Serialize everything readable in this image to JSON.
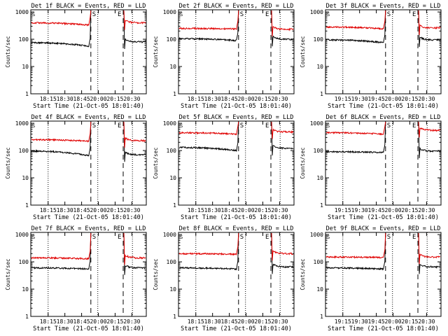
{
  "figure": {
    "x_axis_title": "Start Time (21-Oct-05 18:01:40)",
    "y_axis_title": "Counts/sec",
    "colors": {
      "events": "#000000",
      "lld": "#e00000",
      "axes": "#000000",
      "background": "#ffffff"
    }
  },
  "chart_data": [
    {
      "type": "line",
      "title": "Det 1f BLACK = Events, RED = LLD",
      "xlabel": "Start Time (21-Oct-05 18:01:40)",
      "ylabel": "Counts/sec",
      "x_ticks": [
        "18:15",
        "18:30",
        "18:45",
        "20:00",
        "20:15",
        "20:30"
      ],
      "y_ticks": [
        "1",
        "10",
        "100",
        "1000"
      ],
      "y_scale": "log",
      "ylim": [
        1,
        1200
      ],
      "markers": {
        "start": "S",
        "end": "E"
      },
      "series": [
        {
          "name": "Events",
          "color": "#000000",
          "level": 75,
          "end_level": 55,
          "post_level": 80
        },
        {
          "name": "LLD",
          "color": "#e00000",
          "level": 400,
          "end_level": 330,
          "post_level": 400
        }
      ]
    },
    {
      "type": "line",
      "title": "Det 2f BLACK = Events, RED = LLD",
      "xlabel": "Start Time (21-Oct-05 18:01:40)",
      "ylabel": "Counts/sec",
      "x_ticks": [
        "18:15",
        "18:30",
        "18:45",
        "20:00",
        "20:15",
        "20:30"
      ],
      "y_ticks": [
        "1",
        "10",
        "100",
        "1000"
      ],
      "y_scale": "log",
      "ylim": [
        1,
        1200
      ],
      "markers": {
        "start": "S",
        "end": "E"
      },
      "series": [
        {
          "name": "Events",
          "color": "#000000",
          "level": 105,
          "end_level": 90,
          "post_level": 100
        },
        {
          "name": "LLD",
          "color": "#e00000",
          "level": 250,
          "end_level": 240,
          "post_level": 230
        }
      ]
    },
    {
      "type": "line",
      "title": "Det 3f BLACK = Events, RED = LLD",
      "xlabel": "Start Time (21-Oct-05 18:01:40)",
      "ylabel": "Counts/sec",
      "x_ticks": [
        "19:15",
        "19:30",
        "19:45",
        "20:00",
        "20:15",
        "20:30"
      ],
      "y_ticks": [
        "1",
        "10",
        "100",
        "1000"
      ],
      "y_scale": "log",
      "ylim": [
        1,
        1200
      ],
      "markers": {
        "start": "S",
        "end": "E"
      },
      "series": [
        {
          "name": "Events",
          "color": "#000000",
          "level": 95,
          "end_level": 75,
          "post_level": 95
        },
        {
          "name": "LLD",
          "color": "#e00000",
          "level": 280,
          "end_level": 240,
          "post_level": 260
        }
      ]
    },
    {
      "type": "line",
      "title": "Det 4f BLACK = Events, RED = LLD",
      "xlabel": "Start Time (21-Oct-05 18:01:40)",
      "ylabel": "Counts/sec",
      "x_ticks": [
        "18:15",
        "18:30",
        "18:45",
        "20:00",
        "20:15",
        "20:30"
      ],
      "y_ticks": [
        "1",
        "10",
        "100",
        "1000"
      ],
      "y_scale": "log",
      "ylim": [
        1,
        1200
      ],
      "markers": {
        "start": "S",
        "end": "E"
      },
      "series": [
        {
          "name": "Events",
          "color": "#000000",
          "level": 95,
          "end_level": 65,
          "post_level": 70
        },
        {
          "name": "LLD",
          "color": "#e00000",
          "level": 250,
          "end_level": 220,
          "post_level": 230
        }
      ]
    },
    {
      "type": "line",
      "title": "Det 5f BLACK = Events, RED = LLD",
      "xlabel": "Start Time (21-Oct-05 18:01:40)",
      "ylabel": "Counts/sec",
      "x_ticks": [
        "18:15",
        "18:30",
        "18:45",
        "20:00",
        "20:15",
        "20:30"
      ],
      "y_ticks": [
        "1",
        "10",
        "100",
        "1000"
      ],
      "y_scale": "log",
      "ylim": [
        1,
        1200
      ],
      "markers": {
        "start": "S",
        "end": "E"
      },
      "series": [
        {
          "name": "Events",
          "color": "#000000",
          "level": 130,
          "end_level": 100,
          "post_level": 120
        },
        {
          "name": "LLD",
          "color": "#e00000",
          "level": 450,
          "end_level": 400,
          "post_level": 480
        }
      ]
    },
    {
      "type": "line",
      "title": "Det 6f BLACK = Events, RED = LLD",
      "xlabel": "Start Time (21-Oct-05 18:01:40)",
      "ylabel": "Counts/sec",
      "x_ticks": [
        "19:15",
        "19:30",
        "19:45",
        "20:00",
        "20:15",
        "20:30"
      ],
      "y_ticks": [
        "1",
        "10",
        "100",
        "1000"
      ],
      "y_scale": "log",
      "ylim": [
        1,
        1200
      ],
      "markers": {
        "start": "S",
        "end": "E"
      },
      "series": [
        {
          "name": "Events",
          "color": "#000000",
          "level": 90,
          "end_level": 85,
          "post_level": 95
        },
        {
          "name": "LLD",
          "color": "#e00000",
          "level": 450,
          "end_level": 400,
          "post_level": 550
        }
      ]
    },
    {
      "type": "line",
      "title": "Det 7f BLACK = Events, RED = LLD",
      "xlabel": "Start Time (21-Oct-05 18:01:40)",
      "ylabel": "Counts/sec",
      "x_ticks": [
        "18:15",
        "18:30",
        "18:45",
        "20:00",
        "20:15",
        "20:30"
      ],
      "y_ticks": [
        "1",
        "10",
        "100",
        "1000"
      ],
      "y_scale": "log",
      "ylim": [
        1,
        1200
      ],
      "markers": {
        "start": "S",
        "end": "E"
      },
      "series": [
        {
          "name": "Events",
          "color": "#000000",
          "level": 60,
          "end_level": 55,
          "post_level": 60
        },
        {
          "name": "LLD",
          "color": "#e00000",
          "level": 140,
          "end_level": 130,
          "post_level": 140
        }
      ]
    },
    {
      "type": "line",
      "title": "Det 8f BLACK = Events, RED = LLD",
      "xlabel": "Start Time (21-Oct-05 18:01:40)",
      "ylabel": "Counts/sec",
      "x_ticks": [
        "18:15",
        "18:30",
        "18:45",
        "20:00",
        "20:15",
        "20:30"
      ],
      "y_ticks": [
        "1",
        "10",
        "100",
        "1000"
      ],
      "y_scale": "log",
      "ylim": [
        1,
        1200
      ],
      "markers": {
        "start": "S",
        "end": "E"
      },
      "series": [
        {
          "name": "Events",
          "color": "#000000",
          "level": 60,
          "end_level": 55,
          "post_level": 65
        },
        {
          "name": "LLD",
          "color": "#e00000",
          "level": 200,
          "end_level": 190,
          "post_level": 200
        }
      ]
    },
    {
      "type": "line",
      "title": "Det 9f BLACK = Events, RED = LLD",
      "xlabel": "Start Time (21-Oct-05 18:01:40)",
      "ylabel": "Counts/sec",
      "x_ticks": [
        "19:15",
        "19:30",
        "19:45",
        "20:00",
        "20:15",
        "20:30"
      ],
      "y_ticks": [
        "1",
        "10",
        "100",
        "1000"
      ],
      "y_scale": "log",
      "ylim": [
        1,
        1200
      ],
      "markers": {
        "start": "S",
        "end": "E"
      },
      "series": [
        {
          "name": "Events",
          "color": "#000000",
          "level": 60,
          "end_level": 55,
          "post_level": 65
        },
        {
          "name": "LLD",
          "color": "#e00000",
          "level": 150,
          "end_level": 145,
          "post_level": 150
        }
      ]
    }
  ]
}
